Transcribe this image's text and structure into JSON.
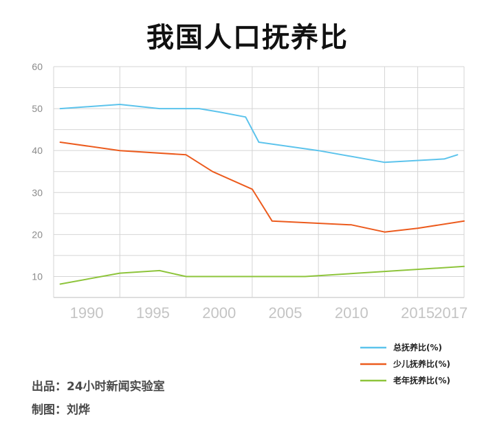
{
  "title": "我国人口抚养比",
  "credits": {
    "source": "出品：24小时新闻实验室",
    "author": "制图：刘烨"
  },
  "colors": {
    "total": "#5bc3ec",
    "youth": "#ec5a1c",
    "elderly": "#8dc43a",
    "grid": "#d4d4d4"
  },
  "chart_data": {
    "type": "line",
    "title": "我国人口抚养比",
    "xlabel": "",
    "ylabel": "",
    "xlim": [
      1987.5,
      2018.5
    ],
    "ylim": [
      5,
      60
    ],
    "x_ticks": [
      "1990",
      "1995",
      "2000",
      "2005",
      "2010",
      "2015",
      "2017"
    ],
    "x_tick_values": [
      1990,
      1995,
      2000,
      2005,
      2010,
      2015,
      2017.5
    ],
    "y_ticks": [
      "10",
      "20",
      "30",
      "40",
      "50",
      "60"
    ],
    "y_tick_values": [
      10,
      20,
      30,
      40,
      50,
      60
    ],
    "grid": true,
    "legend_position": "bottom-right",
    "series": [
      {
        "name": "总抚养比(%)",
        "color": "#5bc3ec",
        "x": [
          1988,
          1992.5,
          1995.5,
          1998.5,
          2000,
          2002,
          2003,
          2007.5,
          2012.5,
          2017,
          2018
        ],
        "y": [
          50,
          51,
          50,
          50,
          49.2,
          48,
          42,
          40,
          37.2,
          38,
          39
        ]
      },
      {
        "name": "少儿抚养比(%)",
        "color": "#ec5a1c",
        "x": [
          1988,
          1992.5,
          1997.5,
          1999.5,
          2002.5,
          2004,
          2010,
          2012.5,
          2015,
          2018.5
        ],
        "y": [
          42,
          40,
          39,
          35,
          30.8,
          23.2,
          22.3,
          20.6,
          21.5,
          23.2
        ]
      },
      {
        "name": "老年抚养比(%)",
        "color": "#8dc43a",
        "x": [
          1988,
          1992.5,
          1995.5,
          1997.5,
          2004,
          2006.5,
          2012.5,
          2018.5
        ],
        "y": [
          8.2,
          10.8,
          11.4,
          10,
          10,
          10,
          11.2,
          12.4
        ]
      }
    ]
  }
}
